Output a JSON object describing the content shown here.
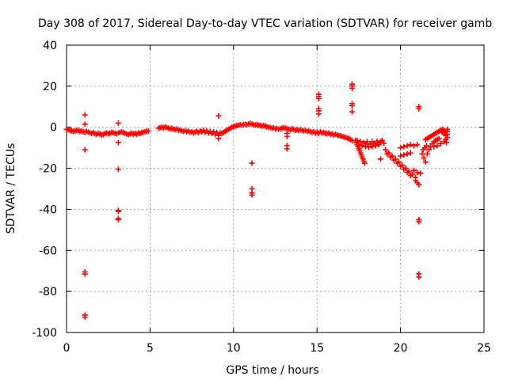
{
  "chart_data": {
    "type": "scatter",
    "title": "Day 308 of 2017, Sidereal Day-to-day VTEC variation (SDTVAR) for receiver gamb",
    "xlabel": "GPS time / hours",
    "ylabel": "SDTVAR / TECUs",
    "xlim": [
      0,
      25
    ],
    "ylim": [
      -100,
      40
    ],
    "xticks": [
      0,
      5,
      10,
      15,
      20,
      25
    ],
    "yticks": [
      -100,
      -80,
      -60,
      -40,
      -20,
      0,
      20,
      40
    ],
    "xtick_labels": [
      "0",
      "5",
      "10",
      "15",
      "20",
      "25"
    ],
    "ytick_labels": [
      "-100",
      "-80",
      "-60",
      "-40",
      "-20",
      "0",
      "20",
      "40"
    ],
    "grid": true,
    "marker": "+",
    "colors": {
      "points": "#ff0000",
      "grid": "#a0a0a0",
      "axes": "#000000"
    },
    "series": [
      {
        "name": "SDTVAR",
        "points": [
          [
            0.0,
            -1.0
          ],
          [
            0.1,
            -1.2
          ],
          [
            0.2,
            -1.5
          ],
          [
            0.3,
            -1.8
          ],
          [
            0.4,
            -2.0
          ],
          [
            0.5,
            -1.8
          ],
          [
            0.6,
            -1.5
          ],
          [
            0.7,
            -1.6
          ],
          [
            0.8,
            -2.0
          ],
          [
            0.9,
            -1.8
          ],
          [
            1.0,
            -2.2
          ],
          [
            1.1,
            -2.5
          ],
          [
            1.2,
            -2.0
          ],
          [
            1.3,
            -2.3
          ],
          [
            1.4,
            -2.8
          ],
          [
            1.5,
            -3.0
          ],
          [
            1.6,
            -2.5
          ],
          [
            1.7,
            -3.2
          ],
          [
            1.8,
            -3.5
          ],
          [
            1.9,
            -3.0
          ],
          [
            2.0,
            -3.3
          ],
          [
            2.1,
            -3.8
          ],
          [
            2.2,
            -3.5
          ],
          [
            2.3,
            -3.0
          ],
          [
            2.4,
            -2.8
          ],
          [
            2.5,
            -3.2
          ],
          [
            2.6,
            -2.9
          ],
          [
            2.7,
            -2.5
          ],
          [
            2.8,
            -2.7
          ],
          [
            2.9,
            -3.0
          ],
          [
            3.0,
            -3.2
          ],
          [
            3.1,
            -2.8
          ],
          [
            3.2,
            -2.5
          ],
          [
            3.3,
            -2.3
          ],
          [
            3.4,
            -2.6
          ],
          [
            3.5,
            -2.9
          ],
          [
            3.6,
            -3.3
          ],
          [
            3.7,
            -3.6
          ],
          [
            3.8,
            -3.2
          ],
          [
            3.9,
            -2.9
          ],
          [
            4.0,
            -3.4
          ],
          [
            4.1,
            -3.0
          ],
          [
            4.2,
            -3.5
          ],
          [
            4.3,
            -2.8
          ],
          [
            4.4,
            -3.1
          ],
          [
            4.5,
            -2.6
          ],
          [
            4.6,
            -2.4
          ],
          [
            4.7,
            -2.2
          ],
          [
            4.8,
            -2.0
          ],
          [
            4.9,
            -1.8
          ],
          [
            1.1,
            6.0
          ],
          [
            1.1,
            1.5
          ],
          [
            1.1,
            -11.0
          ],
          [
            1.1,
            -70.5
          ],
          [
            1.1,
            -71.5
          ],
          [
            1.1,
            -91.5
          ],
          [
            1.1,
            -92.5
          ],
          [
            3.1,
            2.0
          ],
          [
            3.1,
            -7.5
          ],
          [
            3.1,
            -20.5
          ],
          [
            3.1,
            -40.5
          ],
          [
            3.1,
            -41.0
          ],
          [
            3.1,
            -44.5
          ],
          [
            3.1,
            -45.0
          ],
          [
            5.5,
            -0.5
          ],
          [
            5.6,
            -0.2
          ],
          [
            5.7,
            0.0
          ],
          [
            5.8,
            -0.3
          ],
          [
            5.9,
            0.2
          ],
          [
            6.0,
            -0.2
          ],
          [
            6.1,
            -0.5
          ],
          [
            6.2,
            -0.8
          ],
          [
            6.3,
            -0.5
          ],
          [
            6.4,
            -1.0
          ],
          [
            6.5,
            -1.2
          ],
          [
            6.6,
            -0.8
          ],
          [
            6.7,
            -1.5
          ],
          [
            6.8,
            -1.3
          ],
          [
            6.9,
            -1.8
          ],
          [
            7.0,
            -2.0
          ],
          [
            7.1,
            -1.6
          ],
          [
            7.2,
            -2.2
          ],
          [
            7.3,
            -1.8
          ],
          [
            7.4,
            -2.5
          ],
          [
            7.5,
            -2.2
          ],
          [
            7.6,
            -2.8
          ],
          [
            7.7,
            -2.4
          ],
          [
            7.8,
            -2.0
          ],
          [
            7.9,
            -2.6
          ],
          [
            8.0,
            -1.8
          ],
          [
            8.1,
            -2.2
          ],
          [
            8.2,
            -1.5
          ],
          [
            8.3,
            -2.5
          ],
          [
            8.4,
            -1.8
          ],
          [
            8.5,
            -2.8
          ],
          [
            8.6,
            -2.0
          ],
          [
            8.7,
            -3.0
          ],
          [
            8.8,
            -2.2
          ],
          [
            8.9,
            -3.5
          ],
          [
            9.0,
            -2.5
          ],
          [
            9.1,
            -4.0
          ],
          [
            9.2,
            -2.8
          ],
          [
            9.3,
            -3.0
          ],
          [
            9.1,
            5.5
          ],
          [
            9.1,
            -5.5
          ],
          [
            9.4,
            -2.5
          ],
          [
            9.5,
            -2.0
          ],
          [
            9.6,
            -1.5
          ],
          [
            9.7,
            -1.0
          ],
          [
            9.8,
            -0.5
          ],
          [
            9.9,
            0.0
          ],
          [
            10.0,
            0.3
          ],
          [
            10.1,
            0.5
          ],
          [
            10.2,
            0.8
          ],
          [
            10.3,
            1.0
          ],
          [
            10.4,
            1.2
          ],
          [
            10.5,
            1.0
          ],
          [
            10.6,
            1.3
          ],
          [
            10.7,
            1.5
          ],
          [
            10.8,
            1.2
          ],
          [
            10.9,
            1.6
          ],
          [
            11.0,
            1.8
          ],
          [
            11.1,
            1.5
          ],
          [
            11.2,
            1.2
          ],
          [
            11.3,
            1.0
          ],
          [
            11.4,
            1.3
          ],
          [
            11.5,
            1.0
          ],
          [
            11.6,
            0.8
          ],
          [
            11.7,
            0.5
          ],
          [
            11.8,
            0.8
          ],
          [
            11.9,
            0.5
          ],
          [
            11.1,
            -17.5
          ],
          [
            11.1,
            -30.0
          ],
          [
            11.1,
            -32.0
          ],
          [
            11.1,
            -33.0
          ],
          [
            12.0,
            0.2
          ],
          [
            12.1,
            0.0
          ],
          [
            12.2,
            -0.2
          ],
          [
            12.3,
            -0.5
          ],
          [
            12.4,
            -0.3
          ],
          [
            12.5,
            -0.8
          ],
          [
            12.6,
            -0.6
          ],
          [
            12.7,
            -1.0
          ],
          [
            12.8,
            -0.8
          ],
          [
            12.9,
            -0.5
          ],
          [
            13.0,
            -0.2
          ],
          [
            13.1,
            -0.5
          ],
          [
            13.2,
            -0.8
          ],
          [
            13.3,
            -1.0
          ],
          [
            13.4,
            -1.2
          ],
          [
            13.5,
            -0.8
          ],
          [
            13.6,
            -1.0
          ],
          [
            13.7,
            -1.5
          ],
          [
            13.8,
            -1.2
          ],
          [
            13.9,
            -1.5
          ],
          [
            13.2,
            -3.0
          ],
          [
            13.2,
            -4.5
          ],
          [
            13.2,
            -9.0
          ],
          [
            13.2,
            -10.5
          ],
          [
            14.0,
            -1.2
          ],
          [
            14.1,
            -1.5
          ],
          [
            14.2,
            -1.8
          ],
          [
            14.3,
            -1.5
          ],
          [
            14.4,
            -2.0
          ],
          [
            14.5,
            -1.8
          ],
          [
            14.6,
            -2.2
          ],
          [
            14.7,
            -2.5
          ],
          [
            14.8,
            -2.2
          ],
          [
            14.9,
            -2.8
          ],
          [
            15.0,
            -2.5
          ],
          [
            15.1,
            -3.0
          ],
          [
            15.1,
            16.0
          ],
          [
            15.1,
            15.0
          ],
          [
            15.1,
            14.0
          ],
          [
            15.1,
            9.0
          ],
          [
            15.1,
            8.0
          ],
          [
            15.1,
            6.5
          ],
          [
            15.2,
            -2.2
          ],
          [
            15.3,
            -2.8
          ],
          [
            15.4,
            -2.5
          ],
          [
            15.5,
            -3.0
          ],
          [
            15.6,
            -3.2
          ],
          [
            15.7,
            -2.8
          ],
          [
            15.8,
            -3.5
          ],
          [
            15.9,
            -3.2
          ],
          [
            16.0,
            -3.8
          ],
          [
            16.1,
            -3.5
          ],
          [
            16.2,
            -3.8
          ],
          [
            16.3,
            -4.0
          ],
          [
            16.4,
            -4.2
          ],
          [
            16.5,
            -4.5
          ],
          [
            16.6,
            -4.8
          ],
          [
            16.7,
            -5.0
          ],
          [
            16.8,
            -5.2
          ],
          [
            16.9,
            -5.5
          ],
          [
            17.0,
            -6.0
          ],
          [
            17.1,
            -6.5
          ],
          [
            17.1,
            21.0
          ],
          [
            17.1,
            20.0
          ],
          [
            17.1,
            19.0
          ],
          [
            17.1,
            11.5
          ],
          [
            17.1,
            10.5
          ],
          [
            17.1,
            7.5
          ],
          [
            17.3,
            -6.5
          ],
          [
            17.35,
            -7.5
          ],
          [
            17.4,
            -8.5
          ],
          [
            17.45,
            -9.5
          ],
          [
            17.5,
            -10.5
          ],
          [
            17.55,
            -11.5
          ],
          [
            17.6,
            -12.5
          ],
          [
            17.65,
            -13.5
          ],
          [
            17.7,
            -14.5
          ],
          [
            17.75,
            -15.5
          ],
          [
            17.8,
            -16.5
          ],
          [
            17.85,
            -17.5
          ],
          [
            17.4,
            -6.5
          ],
          [
            17.6,
            -7.0
          ],
          [
            17.8,
            -7.5
          ],
          [
            18.0,
            -8.0
          ],
          [
            18.2,
            -8.2
          ],
          [
            18.4,
            -8.0
          ],
          [
            18.6,
            -7.5
          ],
          [
            18.8,
            -7.0
          ],
          [
            19.0,
            -7.8
          ],
          [
            17.5,
            -8.5
          ],
          [
            17.7,
            -9.0
          ],
          [
            17.9,
            -9.5
          ],
          [
            18.1,
            -9.8
          ],
          [
            18.3,
            -9.5
          ],
          [
            18.5,
            -9.0
          ],
          [
            18.7,
            -8.5
          ],
          [
            18.0,
            -7.0
          ],
          [
            18.3,
            -7.0
          ],
          [
            18.6,
            -6.8
          ],
          [
            18.9,
            -6.5
          ],
          [
            18.8,
            -15.5
          ],
          [
            19.1,
            -11.0
          ],
          [
            19.3,
            -12.5
          ],
          [
            19.5,
            -14.0
          ],
          [
            19.7,
            -15.5
          ],
          [
            19.9,
            -17.0
          ],
          [
            20.1,
            -18.5
          ],
          [
            20.3,
            -20.0
          ],
          [
            20.5,
            -21.5
          ],
          [
            20.7,
            -23.0
          ],
          [
            20.9,
            -24.5
          ],
          [
            19.2,
            -13.0
          ],
          [
            19.4,
            -14.5
          ],
          [
            19.6,
            -16.0
          ],
          [
            19.8,
            -17.5
          ],
          [
            20.0,
            -19.0
          ],
          [
            20.2,
            -20.5
          ],
          [
            20.4,
            -22.0
          ],
          [
            20.6,
            -23.5
          ],
          [
            20.0,
            -10.0
          ],
          [
            20.2,
            -9.5
          ],
          [
            20.4,
            -9.0
          ],
          [
            20.6,
            -8.5
          ],
          [
            20.8,
            -9.0
          ],
          [
            21.0,
            -8.5
          ],
          [
            20.0,
            -14.0
          ],
          [
            20.2,
            -13.5
          ],
          [
            20.4,
            -13.0
          ],
          [
            20.6,
            -12.5
          ],
          [
            20.8,
            -21.0
          ],
          [
            21.0,
            -22.0
          ],
          [
            21.2,
            -22.5
          ],
          [
            20.9,
            -26.0
          ],
          [
            21.0,
            -27.0
          ],
          [
            21.1,
            -28.0
          ],
          [
            21.1,
            10.0
          ],
          [
            21.1,
            9.0
          ],
          [
            21.1,
            -45.0
          ],
          [
            21.1,
            -46.0
          ],
          [
            21.1,
            -71.5
          ],
          [
            21.1,
            -73.0
          ],
          [
            21.3,
            -13.0
          ],
          [
            21.4,
            -15.0
          ],
          [
            21.5,
            -17.0
          ],
          [
            21.35,
            -11.0
          ],
          [
            21.45,
            -10.0
          ],
          [
            21.55,
            -9.0
          ],
          [
            21.5,
            -6.0
          ],
          [
            21.6,
            -5.5
          ],
          [
            21.7,
            -5.0
          ],
          [
            21.8,
            -4.5
          ],
          [
            21.9,
            -4.0
          ],
          [
            22.0,
            -3.5
          ],
          [
            22.1,
            -3.0
          ],
          [
            22.2,
            -2.5
          ],
          [
            22.3,
            -2.0
          ],
          [
            22.4,
            -1.5
          ],
          [
            22.5,
            -1.0
          ],
          [
            22.6,
            -1.5
          ],
          [
            22.7,
            -2.0
          ],
          [
            21.6,
            -13.0
          ],
          [
            21.7,
            -11.0
          ],
          [
            21.8,
            -9.5
          ],
          [
            21.9,
            -8.0
          ],
          [
            22.0,
            -7.0
          ],
          [
            22.1,
            -6.5
          ],
          [
            22.2,
            -6.0
          ],
          [
            22.3,
            -5.5
          ],
          [
            22.0,
            -9.5
          ],
          [
            22.2,
            -9.0
          ],
          [
            22.4,
            -8.0
          ],
          [
            22.6,
            -7.0
          ],
          [
            22.7,
            -6.0
          ],
          [
            22.8,
            -5.0
          ],
          [
            22.5,
            -2.5
          ],
          [
            22.6,
            -3.0
          ],
          [
            22.7,
            -4.0
          ],
          [
            22.8,
            -3.5
          ],
          [
            22.75,
            -7.5
          ],
          [
            22.8,
            -1.0
          ],
          [
            22.8,
            -2.0
          ]
        ]
      }
    ]
  }
}
